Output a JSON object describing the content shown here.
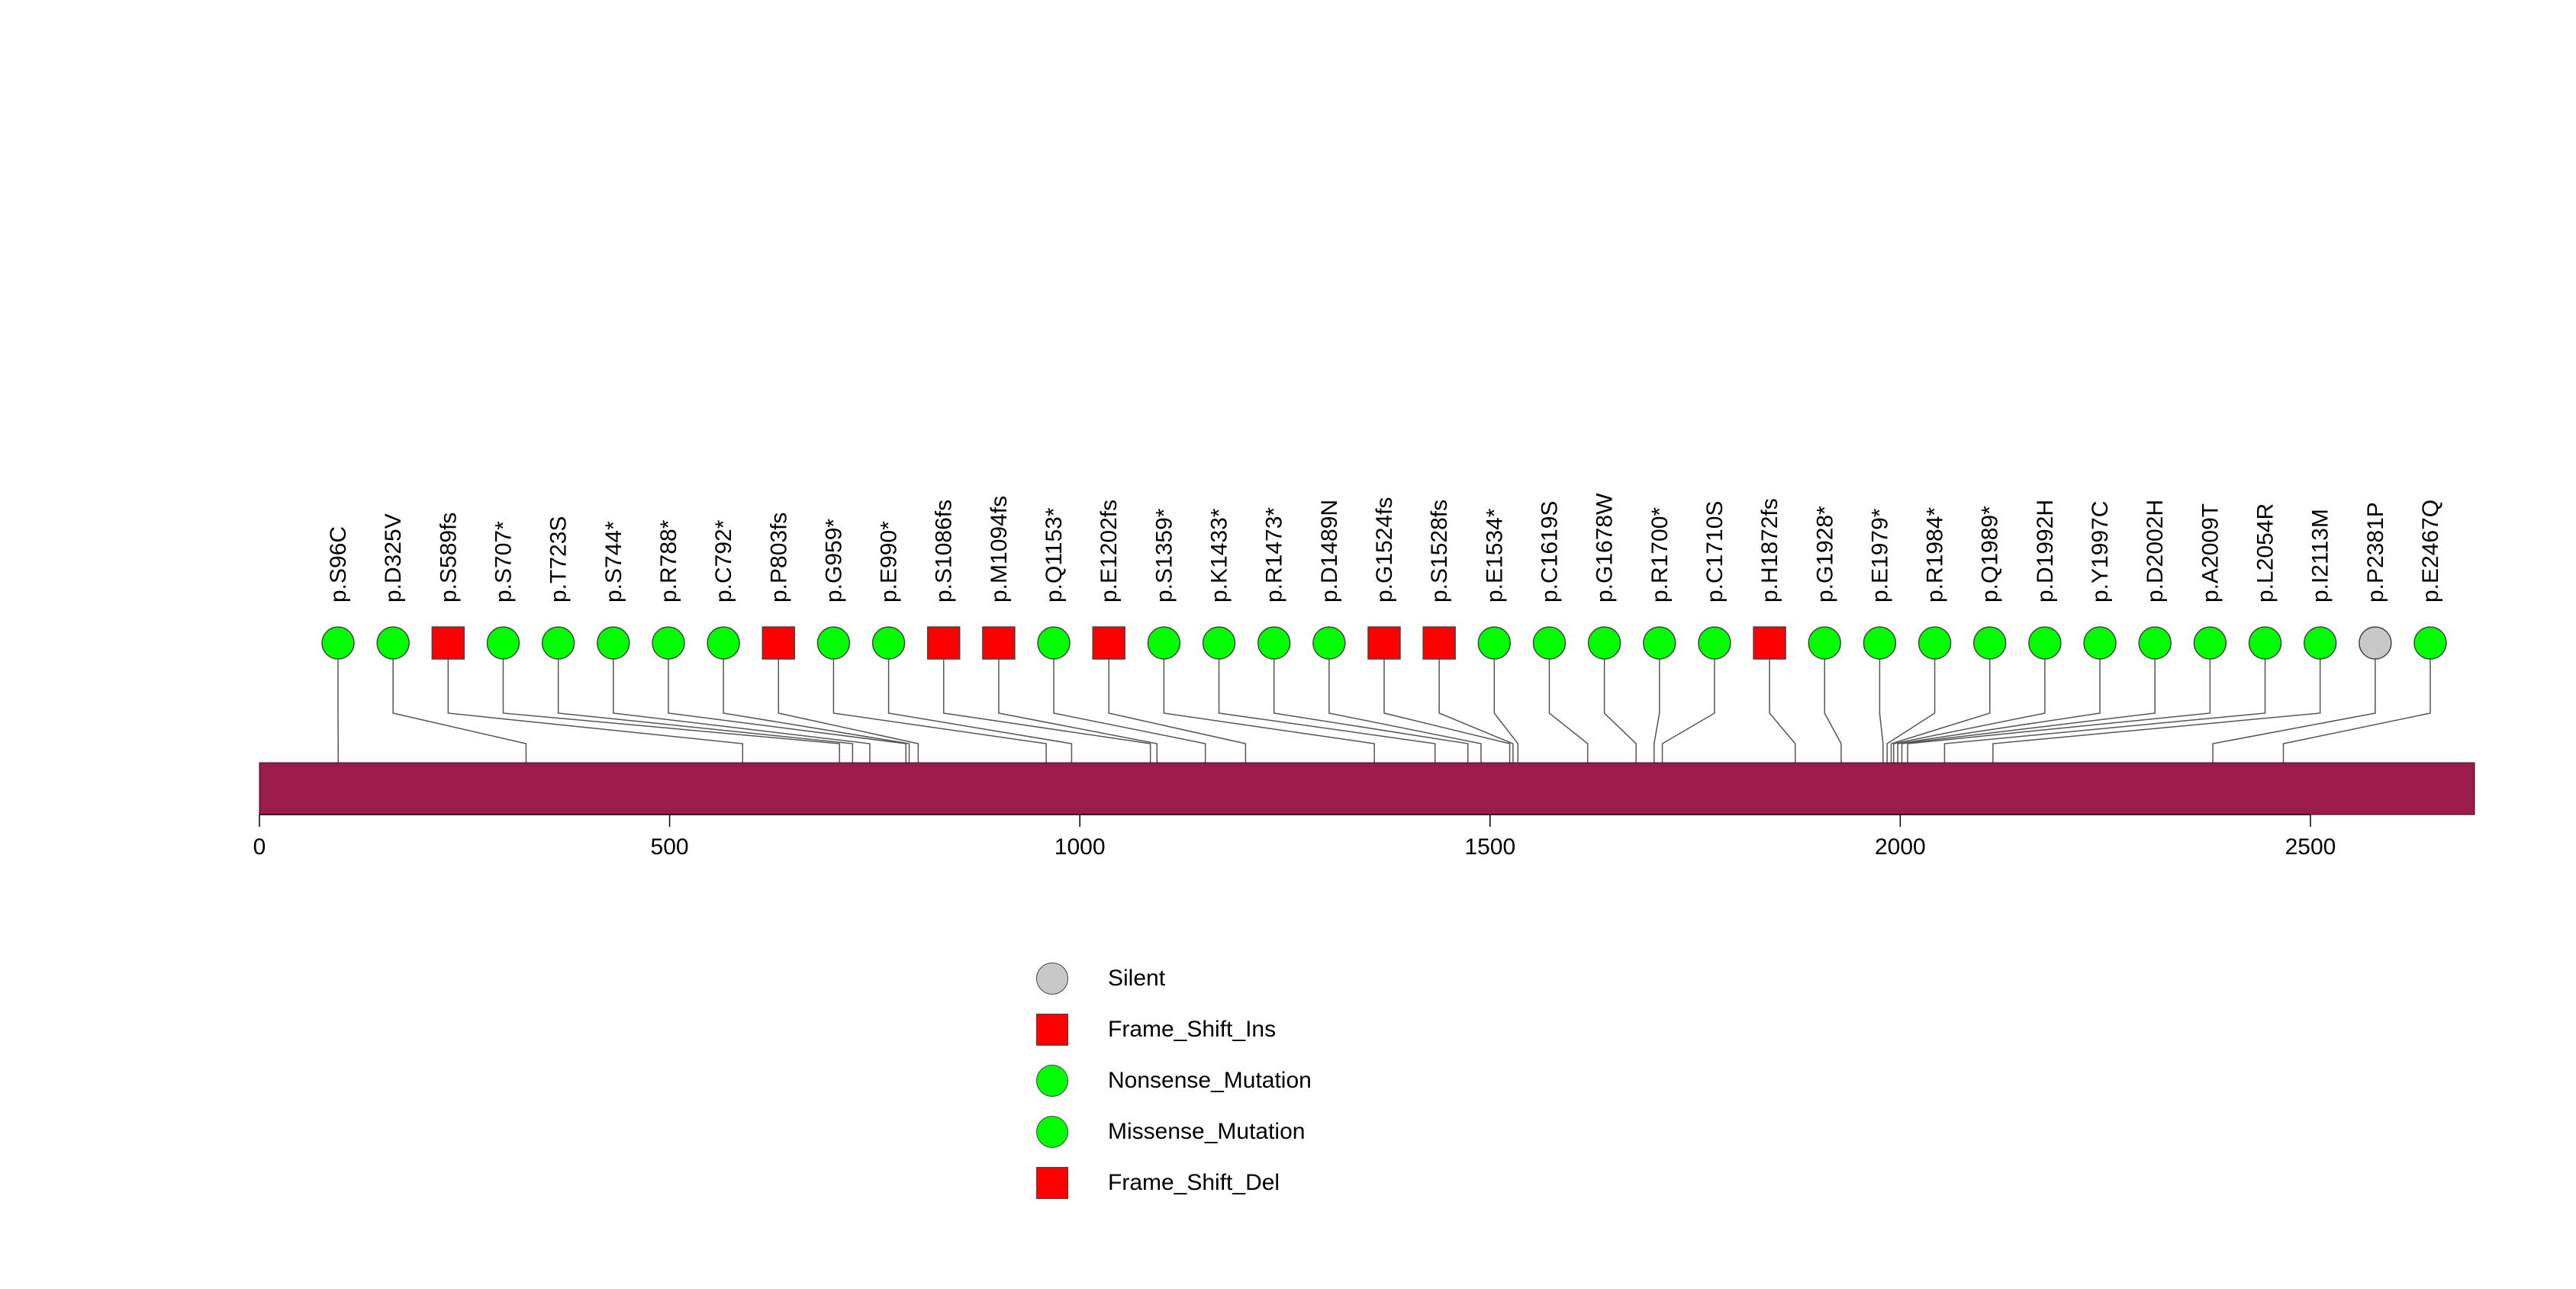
{
  "chart_data": {
    "type": "lollipop",
    "protein_length": 2700,
    "xlim": [
      0,
      2700
    ],
    "x_ticks": [
      0,
      500,
      1000,
      1500,
      2000,
      2500
    ],
    "colors": {
      "domain_bar": "#9b1b4b",
      "Silent": "#c8c8c8",
      "Frame_Shift_Ins": "#ff0000",
      "Nonsense_Mutation": "#00ff00",
      "Missense_Mutation": "#00ff00",
      "Frame_Shift_Del": "#ff0000",
      "stem": "#555555"
    },
    "mutations": [
      {
        "label": "p.S96C",
        "pos": 96,
        "type": "Missense_Mutation"
      },
      {
        "label": "p.D325V",
        "pos": 325,
        "type": "Missense_Mutation"
      },
      {
        "label": "p.S589fs",
        "pos": 589,
        "type": "Frame_Shift_Del"
      },
      {
        "label": "p.S707*",
        "pos": 707,
        "type": "Nonsense_Mutation"
      },
      {
        "label": "p.T723S",
        "pos": 723,
        "type": "Missense_Mutation"
      },
      {
        "label": "p.S744*",
        "pos": 744,
        "type": "Nonsense_Mutation"
      },
      {
        "label": "p.R788*",
        "pos": 788,
        "type": "Nonsense_Mutation"
      },
      {
        "label": "p.C792*",
        "pos": 792,
        "type": "Nonsense_Mutation"
      },
      {
        "label": "p.P803fs",
        "pos": 803,
        "type": "Frame_Shift_Del"
      },
      {
        "label": "p.G959*",
        "pos": 959,
        "type": "Nonsense_Mutation"
      },
      {
        "label": "p.E990*",
        "pos": 990,
        "type": "Nonsense_Mutation"
      },
      {
        "label": "p.S1086fs",
        "pos": 1086,
        "type": "Frame_Shift_Del"
      },
      {
        "label": "p.M1094fs",
        "pos": 1094,
        "type": "Frame_Shift_Del"
      },
      {
        "label": "p.Q1153*",
        "pos": 1153,
        "type": "Nonsense_Mutation"
      },
      {
        "label": "p.E1202fs",
        "pos": 1202,
        "type": "Frame_Shift_Del"
      },
      {
        "label": "p.S1359*",
        "pos": 1359,
        "type": "Nonsense_Mutation"
      },
      {
        "label": "p.K1433*",
        "pos": 1433,
        "type": "Nonsense_Mutation"
      },
      {
        "label": "p.R1473*",
        "pos": 1473,
        "type": "Nonsense_Mutation"
      },
      {
        "label": "p.D1489N",
        "pos": 1489,
        "type": "Missense_Mutation"
      },
      {
        "label": "p.G1524fs",
        "pos": 1524,
        "type": "Frame_Shift_Del"
      },
      {
        "label": "p.S1528fs",
        "pos": 1528,
        "type": "Frame_Shift_Del"
      },
      {
        "label": "p.E1534*",
        "pos": 1534,
        "type": "Nonsense_Mutation"
      },
      {
        "label": "p.C1619S",
        "pos": 1619,
        "type": "Missense_Mutation"
      },
      {
        "label": "p.G1678W",
        "pos": 1678,
        "type": "Missense_Mutation"
      },
      {
        "label": "p.R1700*",
        "pos": 1700,
        "type": "Nonsense_Mutation"
      },
      {
        "label": "p.C1710S",
        "pos": 1710,
        "type": "Missense_Mutation"
      },
      {
        "label": "p.H1872fs",
        "pos": 1872,
        "type": "Frame_Shift_Del"
      },
      {
        "label": "p.G1928*",
        "pos": 1928,
        "type": "Nonsense_Mutation"
      },
      {
        "label": "p.E1979*",
        "pos": 1979,
        "type": "Nonsense_Mutation"
      },
      {
        "label": "p.R1984*",
        "pos": 1984,
        "type": "Nonsense_Mutation"
      },
      {
        "label": "p.Q1989*",
        "pos": 1989,
        "type": "Nonsense_Mutation"
      },
      {
        "label": "p.D1992H",
        "pos": 1992,
        "type": "Missense_Mutation"
      },
      {
        "label": "p.Y1997C",
        "pos": 1997,
        "type": "Missense_Mutation"
      },
      {
        "label": "p.D2002H",
        "pos": 2002,
        "type": "Missense_Mutation"
      },
      {
        "label": "p.A2009T",
        "pos": 2009,
        "type": "Missense_Mutation"
      },
      {
        "label": "p.L2054R",
        "pos": 2054,
        "type": "Missense_Mutation"
      },
      {
        "label": "p.I2113M",
        "pos": 2113,
        "type": "Missense_Mutation"
      },
      {
        "label": "p.P2381P",
        "pos": 2381,
        "type": "Silent"
      },
      {
        "label": "p.E2467Q",
        "pos": 2467,
        "type": "Missense_Mutation"
      }
    ],
    "legend": [
      {
        "label": "Silent",
        "shape": "circle"
      },
      {
        "label": "Frame_Shift_Ins",
        "shape": "square"
      },
      {
        "label": "Nonsense_Mutation",
        "shape": "circle"
      },
      {
        "label": "Missense_Mutation",
        "shape": "circle"
      },
      {
        "label": "Frame_Shift_Del",
        "shape": "square"
      }
    ]
  }
}
